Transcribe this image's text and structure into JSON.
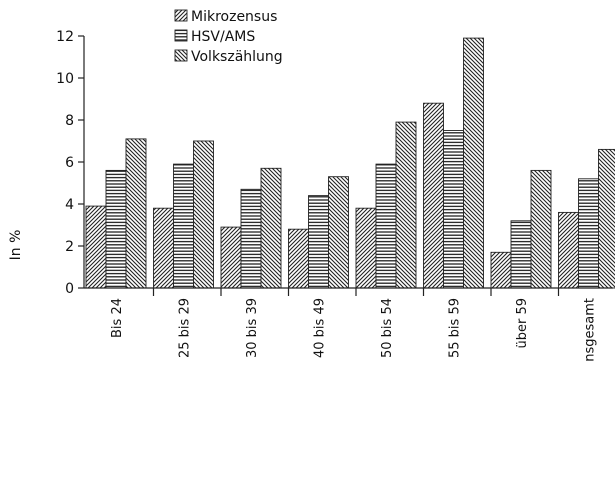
{
  "chart_data": {
    "type": "bar",
    "ylabel": "In %",
    "ylim": [
      0,
      12
    ],
    "yticks": [
      0,
      2,
      4,
      6,
      8,
      10,
      12
    ],
    "categories": [
      "Bis 24",
      "25 bis 29",
      "30 bis 39",
      "40 bis 49",
      "50 bis 54",
      "55 bis 59",
      "über 59",
      "nsgesamt"
    ],
    "series": [
      {
        "name": "Mikrozensus",
        "pattern": "diagonal-dense",
        "values": [
          3.9,
          3.8,
          2.9,
          2.8,
          3.8,
          8.8,
          1.7,
          3.6
        ]
      },
      {
        "name": "HSV/AMS",
        "pattern": "horizontal",
        "values": [
          5.6,
          5.9,
          4.7,
          4.4,
          5.9,
          7.5,
          3.2,
          5.2
        ]
      },
      {
        "name": "Volkszählung",
        "pattern": "diagonal-reverse",
        "values": [
          7.1,
          7.0,
          5.7,
          5.3,
          7.9,
          11.9,
          5.6,
          6.6
        ]
      }
    ],
    "legend_position": "top-center",
    "grid": false,
    "colors": {
      "ink": "#222222",
      "background": "#ffffff"
    }
  }
}
